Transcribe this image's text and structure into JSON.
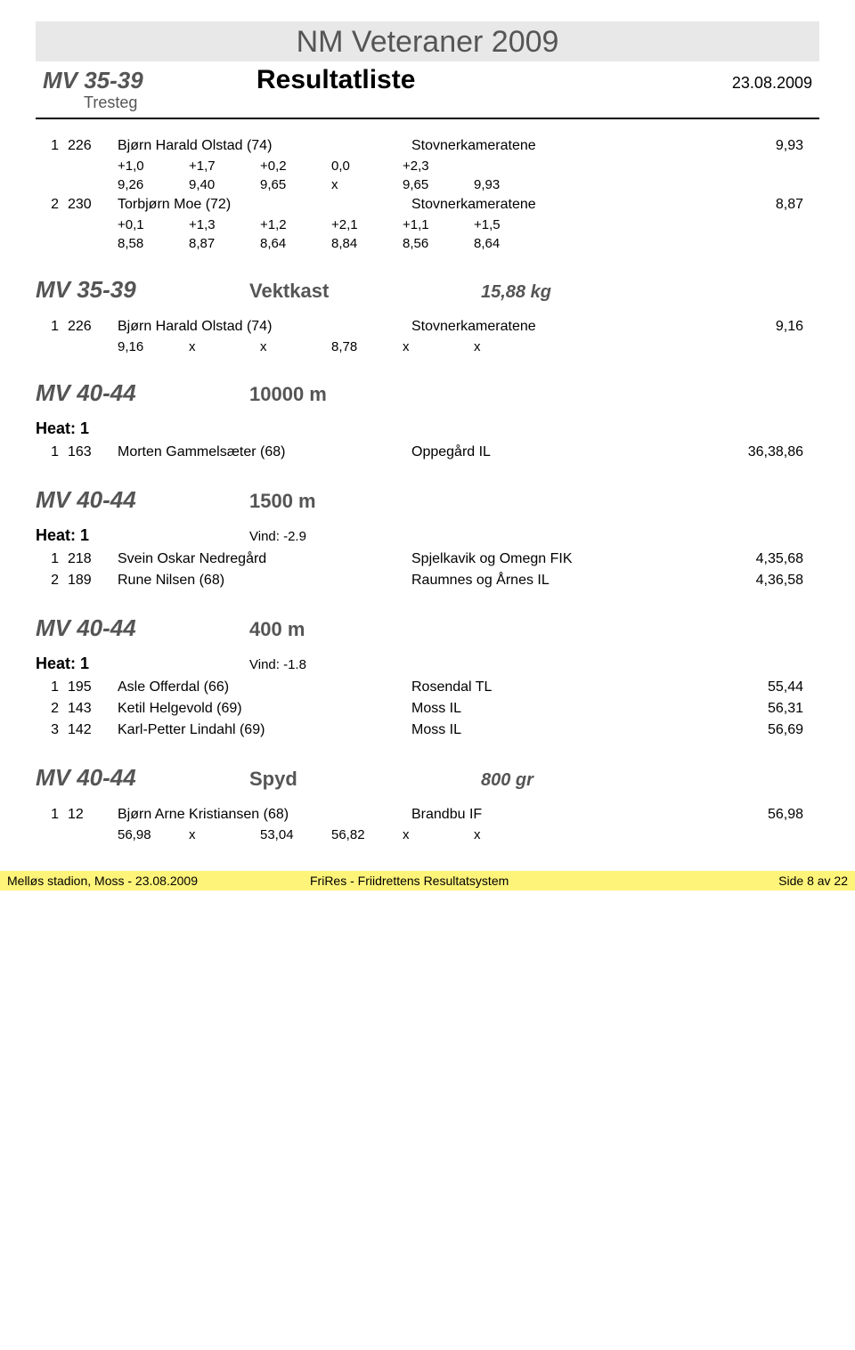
{
  "header": {
    "title": "NM Veteraner 2009",
    "left_label": "MV 35-39",
    "sub_label": "Tresteg",
    "subtitle": "Resultatliste",
    "date": "23.08.2009"
  },
  "sections": [
    {
      "cat": "",
      "event": "",
      "spec": "",
      "show_head": false,
      "results": [
        {
          "place": "1",
          "bib": "226",
          "name": "Bjørn Harald Olstad (74)",
          "club": "Stovnerkameratene",
          "res": "9,93",
          "marks": [
            [
              "+1,0",
              "+1,7",
              "+0,2",
              "0,0",
              "+2,3",
              ""
            ],
            [
              "9,26",
              "9,40",
              "9,65",
              "x",
              "9,65",
              "9,93"
            ]
          ]
        },
        {
          "place": "2",
          "bib": "230",
          "name": "Torbjørn Moe (72)",
          "club": "Stovnerkameratene",
          "res": "8,87",
          "marks": [
            [
              "+0,1",
              "+1,3",
              "+1,2",
              "+2,1",
              "+1,1",
              "+1,5"
            ],
            [
              "8,58",
              "8,87",
              "8,64",
              "8,84",
              "8,56",
              "8,64"
            ]
          ]
        }
      ]
    },
    {
      "cat": "MV 35-39",
      "event": "Vektkast",
      "spec": "15,88 kg",
      "show_head": true,
      "results": [
        {
          "place": "1",
          "bib": "226",
          "name": "Bjørn Harald Olstad (74)",
          "club": "Stovnerkameratene",
          "res": "9,16",
          "marks": [
            [
              "9,16",
              "x",
              "x",
              "8,78",
              "x",
              "x"
            ]
          ]
        }
      ]
    },
    {
      "cat": "MV 40-44",
      "event": "10000 m",
      "spec": "",
      "show_head": true,
      "heat": {
        "label": "Heat: 1",
        "wind": ""
      },
      "results": [
        {
          "place": "1",
          "bib": "163",
          "name": "Morten Gammelsæter (68)",
          "club": "Oppegård IL",
          "res": "36,38,86"
        }
      ]
    },
    {
      "cat": "MV 40-44",
      "event": "1500 m",
      "spec": "",
      "show_head": true,
      "heat": {
        "label": "Heat: 1",
        "wind": "Vind: -2.9"
      },
      "results": [
        {
          "place": "1",
          "bib": "218",
          "name": "Svein Oskar Nedregård",
          "club": "Spjelkavik og Omegn FIK",
          "res": "4,35,68"
        },
        {
          "place": "2",
          "bib": "189",
          "name": "Rune Nilsen (68)",
          "club": "Raumnes og Årnes IL",
          "res": "4,36,58"
        }
      ]
    },
    {
      "cat": "MV 40-44",
      "event": "400 m",
      "spec": "",
      "show_head": true,
      "heat": {
        "label": "Heat: 1",
        "wind": "Vind: -1.8"
      },
      "results": [
        {
          "place": "1",
          "bib": "195",
          "name": "Asle Offerdal (66)",
          "club": "Rosendal TL",
          "res": "55,44"
        },
        {
          "place": "2",
          "bib": "143",
          "name": "Ketil Helgevold (69)",
          "club": "Moss IL",
          "res": "56,31"
        },
        {
          "place": "3",
          "bib": "142",
          "name": "Karl-Petter Lindahl (69)",
          "club": "Moss IL",
          "res": "56,69"
        }
      ]
    },
    {
      "cat": "MV 40-44",
      "event": "Spyd",
      "spec": "800 gr",
      "show_head": true,
      "results": [
        {
          "place": "1",
          "bib": "12",
          "name": "Bjørn Arne Kristiansen (68)",
          "club": "Brandbu IF",
          "res": "56,98",
          "marks": [
            [
              "56,98",
              "x",
              "53,04",
              "56,82",
              "x",
              "x"
            ]
          ]
        }
      ]
    }
  ],
  "footer": {
    "left": "Melløs stadion, Moss - 23.08.2009",
    "center": "FriRes - Friidrettens Resultatsystem",
    "right": "Side 8 av 22"
  }
}
